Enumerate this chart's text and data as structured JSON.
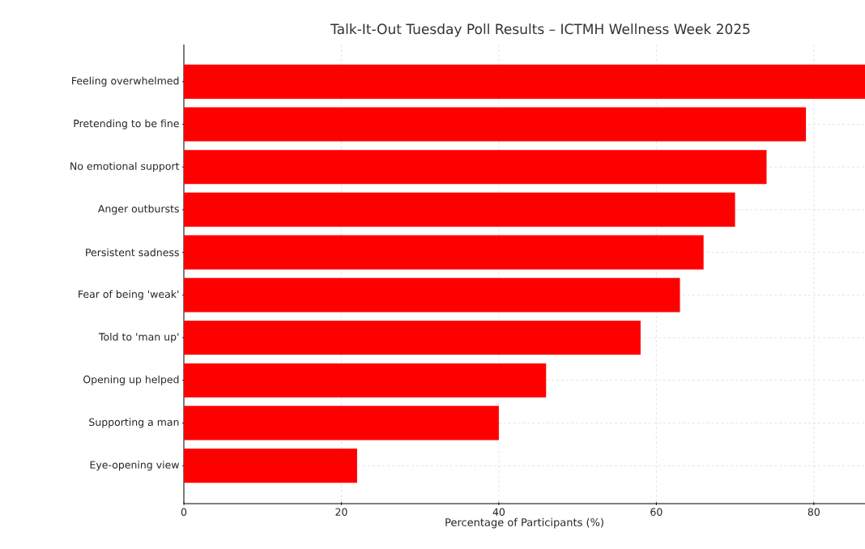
{
  "chart_data": {
    "type": "bar",
    "orientation": "horizontal",
    "title": "Talk-It-Out Tuesday Poll Results – ICTMH Wellness Week 2025",
    "xlabel": "Percentage of Participants (%)",
    "categories": [
      "Feeling overwhelmed",
      "Pretending to be fine",
      "No emotional support",
      "Anger outbursts",
      "Persistent sadness",
      "Fear of being 'weak'",
      "Told to 'man up'",
      "Opening up helped",
      "Supporting a man",
      "Eye-opening view"
    ],
    "values": [
      86.5,
      79,
      74,
      70,
      66,
      63,
      58,
      46,
      40,
      22
    ],
    "color": "#ff0000",
    "xlim": [
      0,
      86.5
    ],
    "xticks": [
      0,
      20,
      40,
      60,
      80
    ],
    "grid": true
  }
}
